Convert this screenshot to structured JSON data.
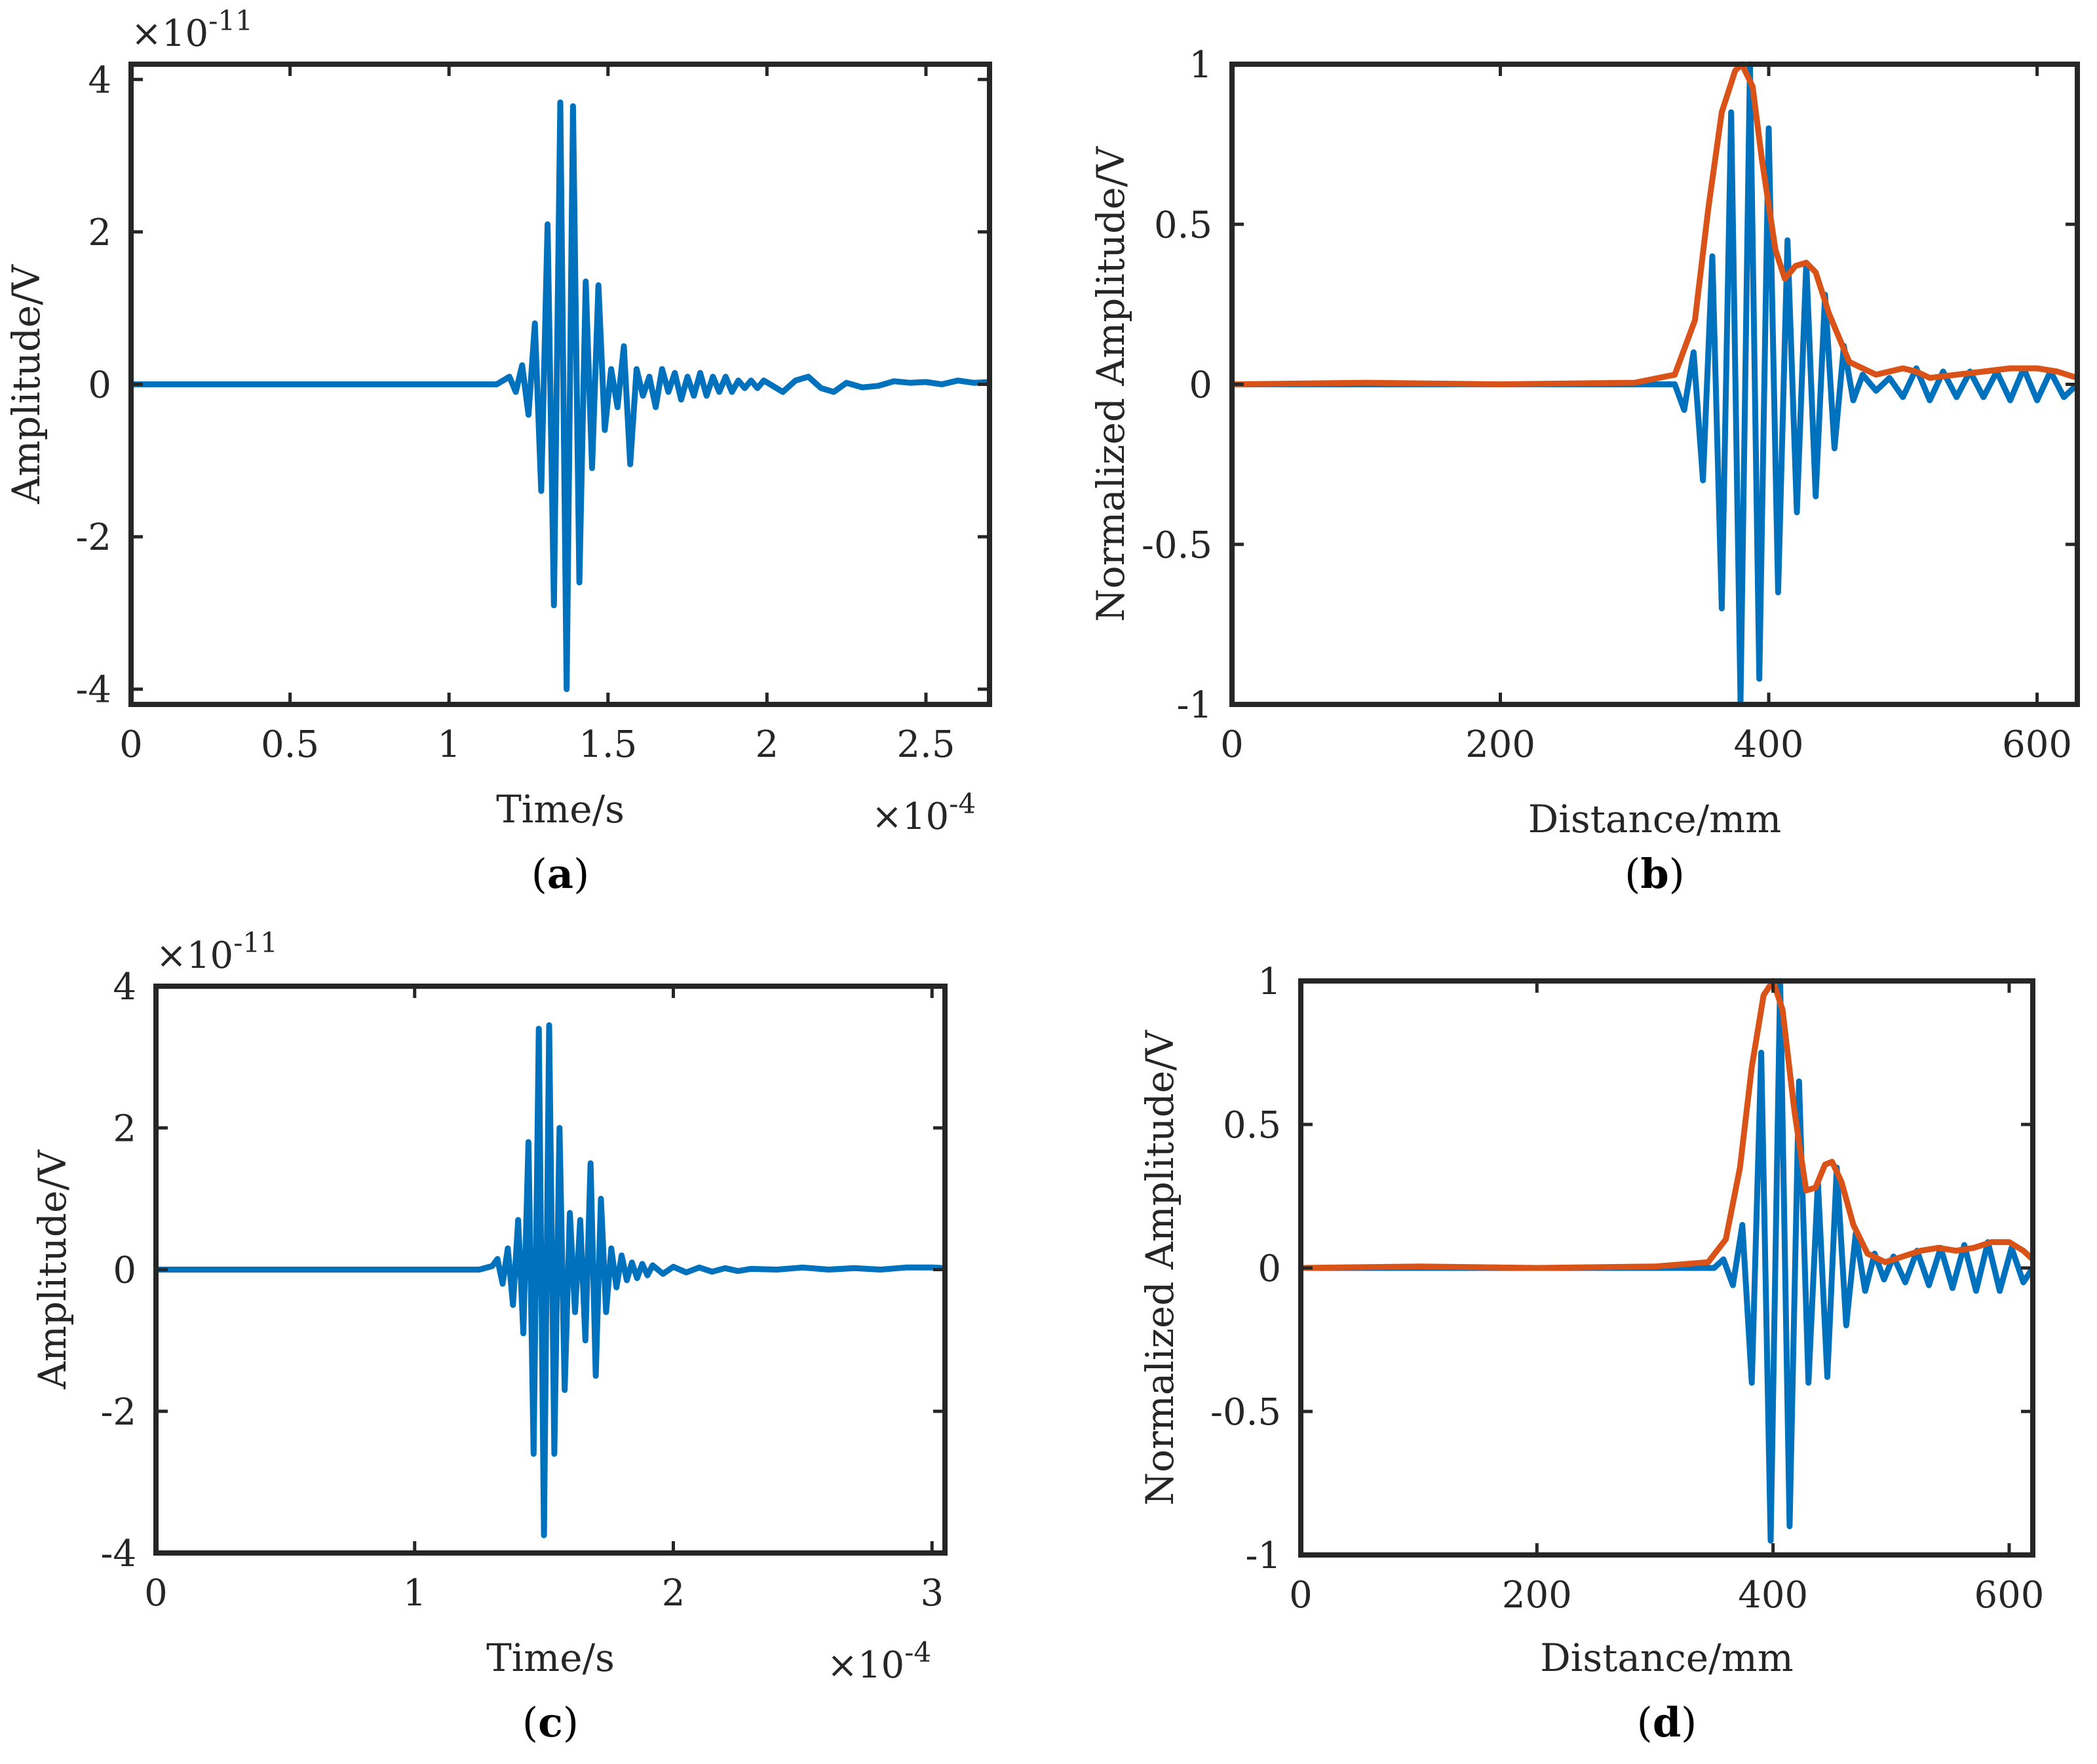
{
  "colors": {
    "signal": "#0072BD",
    "envelope": "#D95319",
    "axes": "#262626"
  },
  "chart_data": [
    {
      "id": "a",
      "type": "line",
      "panel_label": "a",
      "xlabel": "Time/s",
      "ylabel": "Amplitude/V",
      "x_exponent_label": "×10",
      "x_exponent": "-4",
      "y_exponent_label": "×10",
      "y_exponent": "-11",
      "xlim": [
        0,
        2.7
      ],
      "ylim": [
        -4.2,
        4.2
      ],
      "xticks": [
        0,
        0.5,
        1,
        1.5,
        2,
        2.5
      ],
      "xtick_labels": [
        "0",
        "0.5",
        "1",
        "1.5",
        "2",
        "2.5"
      ],
      "yticks": [
        -4,
        -2,
        0,
        2,
        4
      ],
      "ytick_labels": [
        "-4",
        "-2",
        "0",
        "2",
        "4"
      ],
      "series": [
        {
          "name": "signal",
          "color_key": "signal",
          "x": [
            0,
            1.15,
            1.19,
            1.21,
            1.23,
            1.25,
            1.27,
            1.29,
            1.31,
            1.33,
            1.35,
            1.37,
            1.39,
            1.41,
            1.43,
            1.45,
            1.47,
            1.49,
            1.51,
            1.53,
            1.55,
            1.57,
            1.59,
            1.61,
            1.63,
            1.65,
            1.67,
            1.69,
            1.71,
            1.73,
            1.75,
            1.77,
            1.79,
            1.81,
            1.83,
            1.85,
            1.87,
            1.89,
            1.91,
            1.93,
            1.95,
            1.97,
            1.99,
            2.01,
            2.05,
            2.09,
            2.13,
            2.17,
            2.21,
            2.25,
            2.3,
            2.35,
            2.4,
            2.45,
            2.5,
            2.55,
            2.6,
            2.65,
            2.7
          ],
          "y": [
            0,
            0,
            0.1,
            -0.1,
            0.25,
            -0.4,
            0.8,
            -1.4,
            2.1,
            -2.9,
            3.7,
            -4.0,
            3.65,
            -2.6,
            1.35,
            -1.1,
            1.3,
            -0.6,
            0.2,
            -0.3,
            0.5,
            -1.05,
            0.2,
            -0.15,
            0.1,
            -0.3,
            0.2,
            -0.1,
            0.15,
            -0.2,
            0.1,
            -0.15,
            0.15,
            -0.15,
            0.1,
            -0.1,
            0.1,
            -0.1,
            0.05,
            -0.05,
            0.05,
            -0.05,
            0.05,
            0,
            -0.1,
            0.05,
            0.1,
            -0.05,
            -0.1,
            0.02,
            -0.04,
            -0.02,
            0.04,
            0.02,
            0.03,
            0.0,
            0.05,
            0.02,
            0.03
          ]
        }
      ]
    },
    {
      "id": "b",
      "type": "line",
      "panel_label": "b",
      "xlabel": "Distance/mm",
      "ylabel": "Normalized Amplitude/V",
      "xlim": [
        0,
        630
      ],
      "ylim": [
        -1,
        1
      ],
      "xticks": [
        0,
        200,
        400,
        600
      ],
      "xtick_labels": [
        "0",
        "200",
        "400",
        "600"
      ],
      "yticks": [
        -1,
        -0.5,
        0,
        0.5,
        1
      ],
      "ytick_labels": [
        "-1",
        "-0.5",
        "0",
        "0.5",
        "1"
      ],
      "series": [
        {
          "name": "signal",
          "color_key": "signal",
          "x": [
            0,
            330,
            337,
            344,
            351,
            358,
            365,
            372,
            379,
            386,
            393,
            400,
            407,
            414,
            421,
            428,
            435,
            442,
            449,
            456,
            463,
            470,
            480,
            490,
            500,
            510,
            520,
            530,
            540,
            550,
            560,
            570,
            580,
            590,
            600,
            610,
            620,
            630
          ],
          "y": [
            0,
            0,
            -0.08,
            0.1,
            -0.3,
            0.4,
            -0.7,
            0.85,
            -0.99,
            1.0,
            -0.92,
            0.8,
            -0.65,
            0.45,
            -0.4,
            0.38,
            -0.35,
            0.28,
            -0.2,
            0.12,
            -0.05,
            0.03,
            -0.02,
            0.02,
            -0.04,
            0.05,
            -0.05,
            0.04,
            -0.04,
            0.04,
            -0.04,
            0.04,
            -0.05,
            0.05,
            -0.05,
            0.04,
            -0.04,
            0.0
          ]
        },
        {
          "name": "envelope",
          "color_key": "envelope",
          "x": [
            0,
            100,
            200,
            300,
            330,
            345,
            355,
            365,
            375,
            380,
            388,
            395,
            405,
            412,
            420,
            428,
            435,
            445,
            460,
            480,
            500,
            510,
            520,
            540,
            560,
            580,
            600,
            615,
            630
          ],
          "y": [
            0,
            0.005,
            0,
            0.005,
            0.03,
            0.2,
            0.55,
            0.85,
            0.98,
            1.0,
            0.93,
            0.7,
            0.42,
            0.33,
            0.37,
            0.38,
            0.35,
            0.22,
            0.07,
            0.03,
            0.05,
            0.04,
            0.02,
            0.03,
            0.04,
            0.05,
            0.05,
            0.04,
            0.02
          ]
        }
      ]
    },
    {
      "id": "c",
      "type": "line",
      "panel_label": "c",
      "xlabel": "Time/s",
      "ylabel": "Amplitude/V",
      "x_exponent_label": "×10",
      "x_exponent": "-4",
      "y_exponent_label": "×10",
      "y_exponent": "-11",
      "xlim": [
        0,
        3.05
      ],
      "ylim": [
        -4,
        4
      ],
      "xticks": [
        0,
        1,
        2,
        3
      ],
      "xtick_labels": [
        "0",
        "1",
        "2",
        "3"
      ],
      "yticks": [
        -4,
        -2,
        0,
        2,
        4
      ],
      "ytick_labels": [
        "-4",
        "-2",
        "0",
        "2",
        "4"
      ],
      "series": [
        {
          "name": "signal",
          "color_key": "signal",
          "x": [
            0,
            1.25,
            1.3,
            1.32,
            1.34,
            1.36,
            1.38,
            1.4,
            1.42,
            1.44,
            1.46,
            1.48,
            1.5,
            1.52,
            1.54,
            1.56,
            1.58,
            1.6,
            1.62,
            1.64,
            1.66,
            1.68,
            1.7,
            1.72,
            1.74,
            1.76,
            1.78,
            1.8,
            1.82,
            1.84,
            1.86,
            1.88,
            1.9,
            1.92,
            1.96,
            2.0,
            2.05,
            2.1,
            2.15,
            2.2,
            2.25,
            2.3,
            2.4,
            2.5,
            2.6,
            2.7,
            2.8,
            2.9,
            3.0,
            3.05
          ],
          "y": [
            0,
            0,
            0.05,
            0.15,
            -0.2,
            0.3,
            -0.5,
            0.7,
            -0.9,
            1.8,
            -2.6,
            3.4,
            -3.75,
            3.45,
            -2.6,
            2.0,
            -1.7,
            0.8,
            -0.6,
            0.7,
            -1.0,
            1.5,
            -1.5,
            1.0,
            -0.6,
            0.3,
            -0.25,
            0.2,
            -0.15,
            0.1,
            -0.12,
            0.08,
            -0.08,
            0.06,
            -0.06,
            0.04,
            -0.04,
            0.03,
            -0.03,
            0.02,
            -0.02,
            0.01,
            0.0,
            0.03,
            0.0,
            0.02,
            0.0,
            0.03,
            0.03,
            0.02
          ]
        }
      ]
    },
    {
      "id": "d",
      "type": "line",
      "panel_label": "d",
      "xlabel": "Distance/mm",
      "ylabel": "Normalized Amplitude/V",
      "xlim": [
        0,
        620
      ],
      "ylim": [
        -1,
        1
      ],
      "xticks": [
        0,
        200,
        400,
        600
      ],
      "xtick_labels": [
        "0",
        "200",
        "400",
        "600"
      ],
      "yticks": [
        -1,
        -0.5,
        0,
        0.5,
        1
      ],
      "ytick_labels": [
        "-1",
        "-0.5",
        "0",
        "0.5",
        "1"
      ],
      "series": [
        {
          "name": "signal",
          "color_key": "signal",
          "x": [
            0,
            350,
            358,
            366,
            374,
            382,
            390,
            398,
            406,
            414,
            422,
            430,
            438,
            446,
            454,
            462,
            470,
            478,
            486,
            494,
            502,
            512,
            522,
            532,
            542,
            552,
            562,
            572,
            582,
            592,
            602,
            612,
            620
          ],
          "y": [
            0,
            0,
            0.03,
            -0.06,
            0.15,
            -0.4,
            0.75,
            -0.95,
            1.0,
            -0.9,
            0.65,
            -0.4,
            0.3,
            -0.38,
            0.35,
            -0.2,
            0.12,
            -0.08,
            0.05,
            -0.04,
            0.04,
            -0.05,
            0.06,
            -0.06,
            0.07,
            -0.07,
            0.08,
            -0.08,
            0.09,
            -0.08,
            0.07,
            -0.05,
            0.0
          ]
        },
        {
          "name": "envelope",
          "color_key": "envelope",
          "x": [
            0,
            100,
            200,
            300,
            345,
            360,
            372,
            382,
            392,
            400,
            408,
            418,
            428,
            436,
            444,
            450,
            458,
            468,
            480,
            495,
            510,
            525,
            540,
            555,
            570,
            585,
            600,
            612,
            620
          ],
          "y": [
            0,
            0.005,
            0,
            0.005,
            0.02,
            0.1,
            0.35,
            0.7,
            0.95,
            1.0,
            0.9,
            0.55,
            0.27,
            0.28,
            0.36,
            0.37,
            0.3,
            0.15,
            0.05,
            0.02,
            0.04,
            0.06,
            0.07,
            0.06,
            0.07,
            0.09,
            0.09,
            0.06,
            0.03
          ]
        }
      ]
    }
  ]
}
